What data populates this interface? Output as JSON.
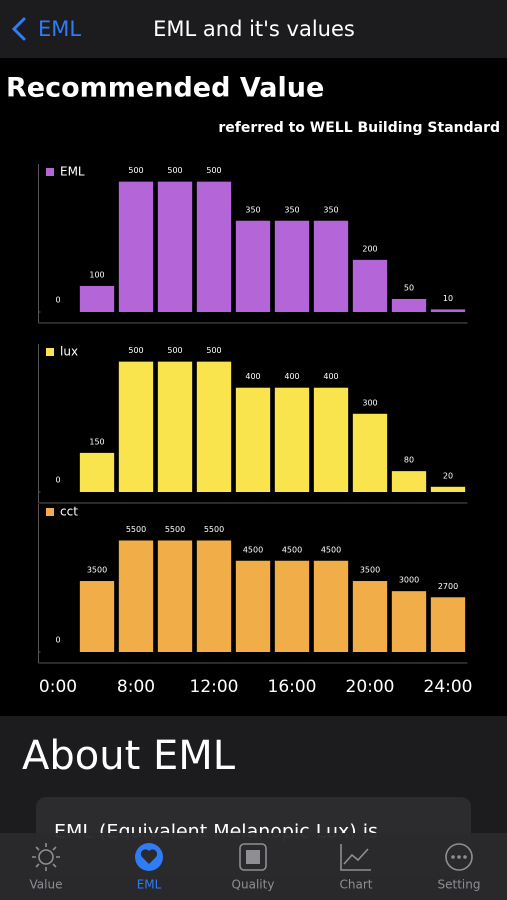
{
  "nav": {
    "back": "EML",
    "title": "EML and it's values"
  },
  "heading": "Recommended Value",
  "subheading": "referred to WELL Building Standard",
  "chart_data": [
    {
      "type": "bar",
      "series": [
        {
          "name": "EML",
          "color": "#b466d8",
          "values": [
            null,
            100,
            500,
            500,
            500,
            350,
            350,
            350,
            200,
            50,
            10
          ]
        }
      ],
      "ylim": [
        0,
        560
      ],
      "yticks": [
        0
      ]
    },
    {
      "type": "bar",
      "series": [
        {
          "name": "lux",
          "color": "#f9e44e",
          "values": [
            null,
            150,
            500,
            500,
            500,
            400,
            400,
            400,
            300,
            80,
            20
          ]
        }
      ],
      "ylim": [
        0,
        560
      ],
      "yticks": [
        0
      ]
    },
    {
      "type": "bar",
      "series": [
        {
          "name": "cct",
          "color": "#f1ad47",
          "values": [
            null,
            3500,
            5500,
            5500,
            5500,
            4500,
            4500,
            4500,
            3500,
            3000,
            2700
          ]
        }
      ],
      "ylim": [
        0,
        7200
      ],
      "yticks": [
        0
      ],
      "categories": [
        "0:00",
        null,
        "8:00",
        null,
        "12:00",
        null,
        "16:00",
        null,
        "20:00",
        null,
        "24:00"
      ]
    }
  ],
  "about": {
    "title": "About EML",
    "text": "EML (Equivalent Melanopic Lux) is"
  },
  "tabs": [
    "Value",
    "EML",
    "Quality",
    "Chart",
    "Setting"
  ]
}
